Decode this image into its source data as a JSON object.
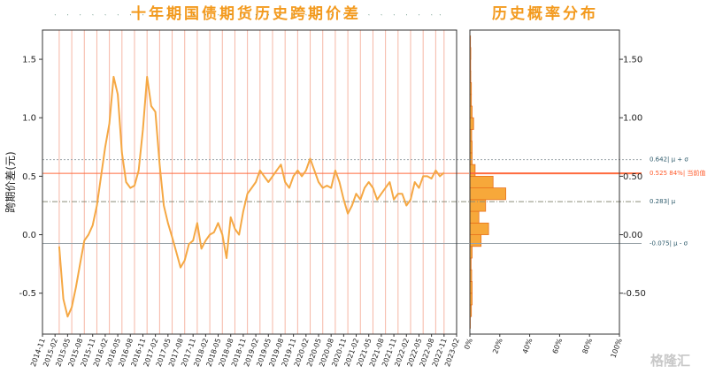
{
  "titles": {
    "left": "十年期国债期货历史跨期价差",
    "right": "历史概率分布"
  },
  "watermark": "格隆汇",
  "chart_data": [
    {
      "type": "line",
      "title": "十年期国债期货历史跨期价差",
      "ylabel": "跨期价差(元)",
      "ylim": [
        -0.85,
        1.75
      ],
      "yticks": [
        -0.5,
        0.0,
        0.5,
        1.0,
        1.5
      ],
      "xlim": [
        "2014-11",
        "2023-02"
      ],
      "xticks": [
        "2014-11",
        "2015-02",
        "2015-05",
        "2015-08",
        "2015-11",
        "2016-02",
        "2016-05",
        "2016-08",
        "2016-11",
        "2017-02",
        "2017-05",
        "2017-08",
        "2017-11",
        "2018-02",
        "2018-05",
        "2018-08",
        "2018-11",
        "2019-02",
        "2019-05",
        "2019-08",
        "2019-11",
        "2020-02",
        "2020-05",
        "2020-08",
        "2020-11",
        "2021-02",
        "2021-05",
        "2021-08",
        "2021-11",
        "2022-02",
        "2022-05",
        "2022-08",
        "2022-11",
        "2023-02"
      ],
      "color": "#f5a844",
      "series": [
        {
          "x": [
            "2015-03",
            "2015-04",
            "2015-05",
            "2015-06",
            "2015-07",
            "2015-08",
            "2015-09",
            "2015-10",
            "2015-11",
            "2015-12",
            "2016-01",
            "2016-02",
            "2016-03",
            "2016-04",
            "2016-05",
            "2016-06",
            "2016-07",
            "2016-08",
            "2016-09",
            "2016-10",
            "2016-11",
            "2016-12",
            "2017-01",
            "2017-02",
            "2017-03",
            "2017-04",
            "2017-05",
            "2017-06",
            "2017-07",
            "2017-08",
            "2017-09",
            "2017-10",
            "2017-11",
            "2017-12",
            "2018-01",
            "2018-02",
            "2018-03",
            "2018-04",
            "2018-05",
            "2018-06",
            "2018-07",
            "2018-08",
            "2018-09",
            "2018-10",
            "2018-11",
            "2018-12",
            "2019-01",
            "2019-02",
            "2019-03",
            "2019-04",
            "2019-05",
            "2019-06",
            "2019-07",
            "2019-08",
            "2019-09",
            "2019-10",
            "2019-11",
            "2019-12",
            "2020-01",
            "2020-02",
            "2020-03",
            "2020-04",
            "2020-05",
            "2020-06",
            "2020-07",
            "2020-08",
            "2020-09",
            "2020-10",
            "2020-11",
            "2020-12",
            "2021-01",
            "2021-02",
            "2021-03",
            "2021-04",
            "2021-05",
            "2021-06",
            "2021-07",
            "2021-08",
            "2021-09",
            "2021-10",
            "2021-11",
            "2021-12",
            "2022-01",
            "2022-02",
            "2022-03",
            "2022-04",
            "2022-05",
            "2022-06",
            "2022-07",
            "2022-08",
            "2022-09",
            "2022-10",
            "2022-11"
          ],
          "y": [
            -0.1,
            -0.55,
            -0.7,
            -0.62,
            -0.45,
            -0.25,
            -0.05,
            0.0,
            0.08,
            0.25,
            0.5,
            0.75,
            0.95,
            1.35,
            1.2,
            0.7,
            0.45,
            0.4,
            0.42,
            0.55,
            0.9,
            1.35,
            1.1,
            1.05,
            0.6,
            0.25,
            0.1,
            -0.02,
            -0.15,
            -0.28,
            -0.22,
            -0.08,
            -0.05,
            0.1,
            -0.12,
            -0.05,
            0.0,
            0.02,
            0.1,
            0.0,
            -0.2,
            0.15,
            0.05,
            0.0,
            0.2,
            0.35,
            0.4,
            0.45,
            0.55,
            0.5,
            0.45,
            0.5,
            0.55,
            0.6,
            0.45,
            0.4,
            0.5,
            0.55,
            0.5,
            0.55,
            0.65,
            0.55,
            0.45,
            0.4,
            0.42,
            0.4,
            0.55,
            0.45,
            0.3,
            0.18,
            0.25,
            0.35,
            0.3,
            0.4,
            0.45,
            0.4,
            0.3,
            0.35,
            0.4,
            0.45,
            0.3,
            0.35,
            0.35,
            0.25,
            0.3,
            0.45,
            0.4,
            0.5,
            0.5,
            0.48,
            0.55,
            0.5,
            0.53
          ]
        }
      ],
      "vertical_markers": [
        "2015-03",
        "2015-06",
        "2015-09",
        "2015-12",
        "2016-03",
        "2016-06",
        "2016-09",
        "2016-12",
        "2017-03",
        "2017-06",
        "2017-09",
        "2017-12",
        "2018-03",
        "2018-06",
        "2018-09",
        "2018-12",
        "2019-03",
        "2019-06",
        "2019-09",
        "2019-12",
        "2020-03",
        "2020-06",
        "2020-09",
        "2020-12",
        "2021-03",
        "2021-06",
        "2021-09",
        "2021-12",
        "2022-03",
        "2022-06",
        "2022-09",
        "2022-11"
      ],
      "reference_lines": [
        {
          "value": 0.642,
          "label": "0.642| μ + σ",
          "color": "#9aa3a8",
          "style": "dotted"
        },
        {
          "value": 0.525,
          "label": "0.525  84%| 当前值",
          "color": "#ff6a3d",
          "style": "solid"
        },
        {
          "value": 0.283,
          "label": "0.283| μ",
          "color": "#8c8f7a",
          "style": "dashdot"
        },
        {
          "value": -0.075,
          "label": "-0.075| μ - σ",
          "color": "#9aa3a8",
          "style": "solid"
        }
      ]
    },
    {
      "type": "bar",
      "title": "历史概率分布",
      "orientation": "horizontal",
      "xticks": [
        "0%",
        "20%",
        "40%",
        "60%",
        "80%",
        "100%"
      ],
      "xlim": [
        0,
        100
      ],
      "ylim": [
        -0.85,
        1.75
      ],
      "yticks": [
        -0.5,
        0.0,
        0.5,
        1.0,
        1.5
      ],
      "bin_width": 0.1,
      "bins": [
        -0.8,
        -0.7,
        -0.6,
        -0.5,
        -0.4,
        -0.3,
        -0.2,
        -0.1,
        0.0,
        0.1,
        0.2,
        0.3,
        0.4,
        0.5,
        0.6,
        0.7,
        0.8,
        0.9,
        1.0,
        1.1,
        1.2,
        1.3,
        1.4,
        1.5,
        1.6
      ],
      "values": [
        0.3,
        1.0,
        1.5,
        1.5,
        1.2,
        0.8,
        1.5,
        7.5,
        12.5,
        6.0,
        10.5,
        24.0,
        15.5,
        3.5,
        1.5,
        1.5,
        1.2,
        2.5,
        1.5,
        1.0,
        1.0,
        0.6,
        0.5,
        0.6,
        0.4
      ],
      "color": "#f7a83a",
      "edge_color": "#e8711c"
    }
  ]
}
